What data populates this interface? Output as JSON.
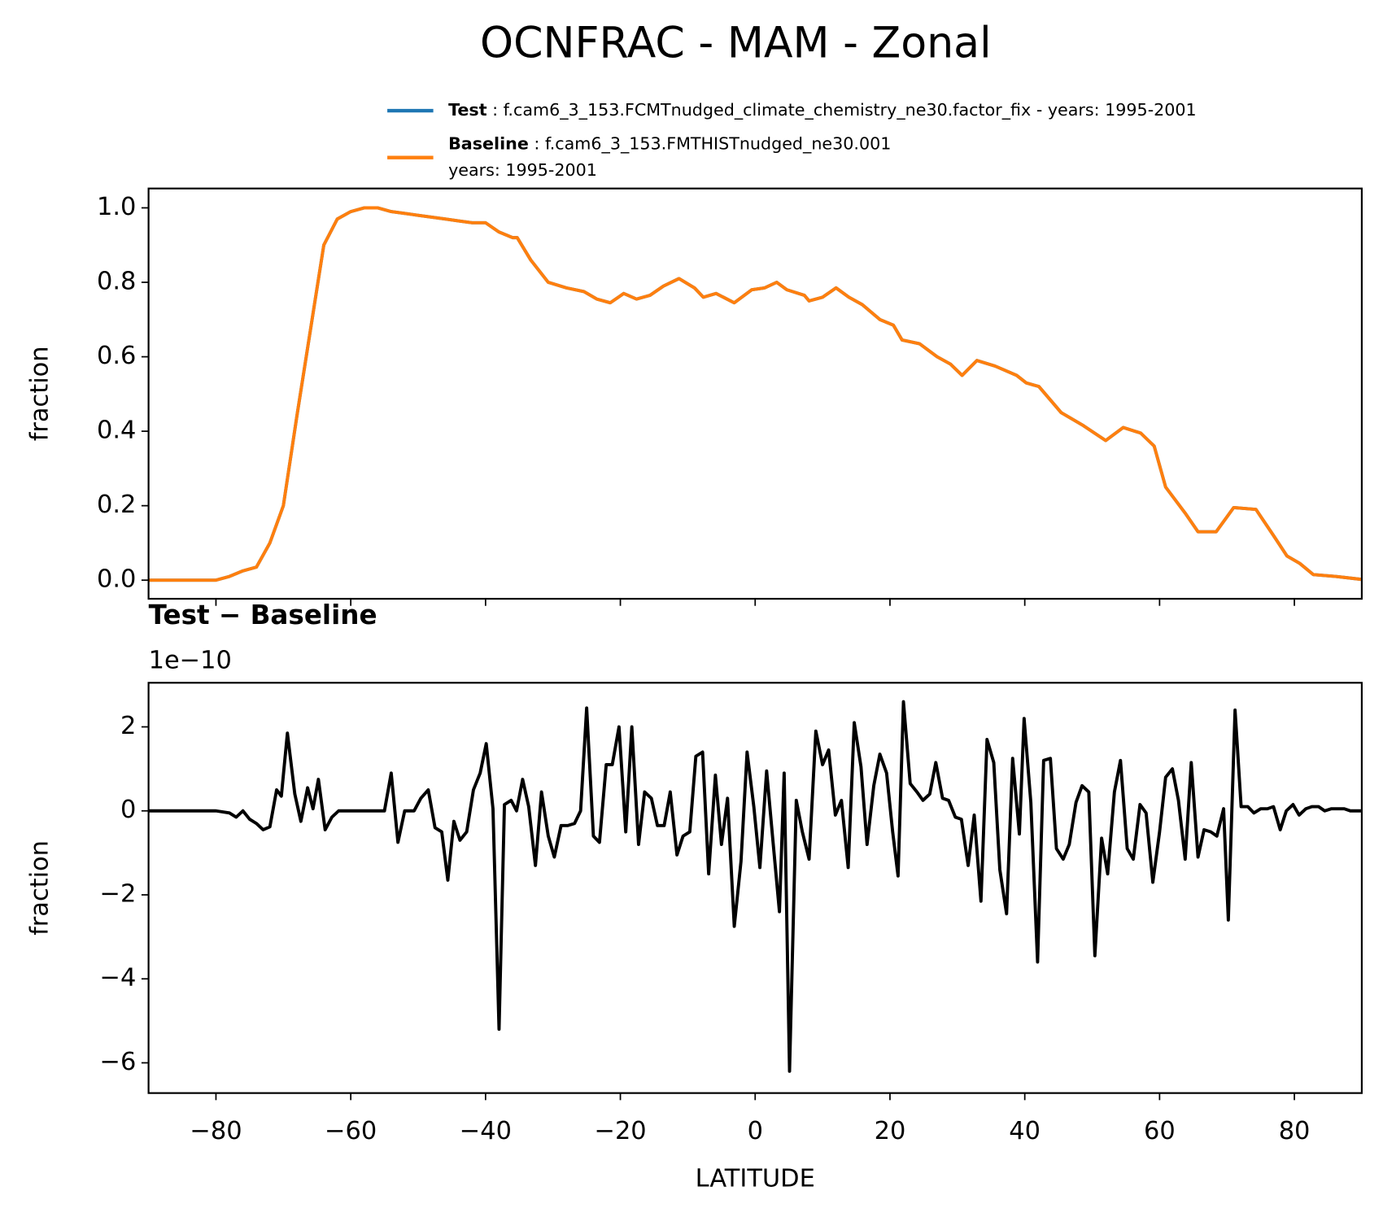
{
  "chart_data": [
    {
      "type": "line",
      "title": "OCNFRAC - MAM - Zonal",
      "ylabel": "fraction",
      "x": [
        -90,
        -80,
        -78,
        -76,
        -74,
        -72,
        -70,
        -68,
        -66,
        -64,
        -62,
        -60,
        -58,
        -56,
        -54,
        -52,
        -50,
        -48,
        -46,
        -44,
        -42,
        -40,
        -38,
        -36,
        -35.3,
        -33.3,
        -30.7,
        -28,
        -25.4,
        -23.5,
        -21.5,
        -19.5,
        -17.6,
        -15.6,
        -13.6,
        -11.3,
        -9,
        -7.7,
        -5.8,
        -3.1,
        -0.5,
        1.4,
        3.2,
        4.7,
        7.3,
        8,
        10,
        12,
        13.9,
        15.9,
        18.5,
        20.5,
        21.8,
        24.4,
        27,
        29,
        30.7,
        32.9,
        35.6,
        38.8,
        40.2,
        42.1,
        45.4,
        48.7,
        52,
        54.6,
        57.2,
        59.2,
        60.9,
        63.8,
        65.7,
        68.4,
        71,
        74.3,
        76.9,
        78.9,
        80.8,
        82.8,
        86.1,
        90
      ],
      "series": [
        {
          "name": "Test",
          "description": [
            "f.cam6_3_153.FCMTnudged_climate_chemistry_ne30.factor_fix - years: 1995-2001"
          ],
          "color": "#1f77b4",
          "values": [
            0,
            0,
            0.01,
            0.025,
            0.035,
            0.1,
            0.2,
            0.44,
            0.67,
            0.9,
            0.97,
            0.99,
            1.0,
            1.0,
            0.99,
            0.985,
            0.98,
            0.975,
            0.97,
            0.965,
            0.96,
            0.96,
            0.935,
            0.92,
            0.92,
            0.86,
            0.8,
            0.785,
            0.775,
            0.755,
            0.745,
            0.77,
            0.755,
            0.765,
            0.79,
            0.81,
            0.785,
            0.76,
            0.77,
            0.745,
            0.78,
            0.785,
            0.8,
            0.78,
            0.765,
            0.75,
            0.76,
            0.785,
            0.76,
            0.74,
            0.7,
            0.685,
            0.645,
            0.635,
            0.6,
            0.58,
            0.55,
            0.59,
            0.575,
            0.55,
            0.53,
            0.52,
            0.45,
            0.415,
            0.375,
            0.41,
            0.395,
            0.36,
            0.25,
            0.18,
            0.13,
            0.13,
            0.195,
            0.19,
            0.12,
            0.065,
            0.045,
            0.015,
            0.01,
            0.002
          ]
        },
        {
          "name": "Baseline",
          "description": [
            "f.cam6_3_153.FMTHISTnudged_ne30.001",
            "years: 1995-2001"
          ],
          "color": "#ff7f0e",
          "values": [
            0,
            0,
            0.01,
            0.025,
            0.035,
            0.1,
            0.2,
            0.44,
            0.67,
            0.9,
            0.97,
            0.99,
            1.0,
            1.0,
            0.99,
            0.985,
            0.98,
            0.975,
            0.97,
            0.965,
            0.96,
            0.96,
            0.935,
            0.92,
            0.92,
            0.86,
            0.8,
            0.785,
            0.775,
            0.755,
            0.745,
            0.77,
            0.755,
            0.765,
            0.79,
            0.81,
            0.785,
            0.76,
            0.77,
            0.745,
            0.78,
            0.785,
            0.8,
            0.78,
            0.765,
            0.75,
            0.76,
            0.785,
            0.76,
            0.74,
            0.7,
            0.685,
            0.645,
            0.635,
            0.6,
            0.58,
            0.55,
            0.59,
            0.575,
            0.55,
            0.53,
            0.52,
            0.45,
            0.415,
            0.375,
            0.41,
            0.395,
            0.36,
            0.25,
            0.18,
            0.13,
            0.13,
            0.195,
            0.19,
            0.12,
            0.065,
            0.045,
            0.015,
            0.01,
            0.002
          ]
        }
      ],
      "xlim": [
        -90,
        90
      ],
      "ylim": [
        -0.05,
        1.052
      ],
      "xticks": [
        -80,
        -60,
        -40,
        -20,
        0,
        20,
        40,
        60,
        80
      ],
      "yticks": [
        {
          "value": 0,
          "label": "0.0"
        },
        {
          "value": 0.2,
          "label": "0.2"
        },
        {
          "value": 0.4,
          "label": "0.4"
        },
        {
          "value": 0.6,
          "label": "0.6"
        },
        {
          "value": 0.8,
          "label": "0.8"
        },
        {
          "value": 1,
          "label": "1.0"
        }
      ]
    },
    {
      "type": "line",
      "title": "Test − Baseline",
      "y_offset_label": "1e−10",
      "ylabel": "fraction",
      "xlabel": "LATITUDE",
      "x": [
        -90,
        -80,
        -78,
        -77,
        -76,
        -75,
        -74,
        -73,
        -72,
        -71,
        -70.3,
        -69.4,
        -68.3,
        -67.4,
        -66.4,
        -65.6,
        -64.8,
        -63.8,
        -62.8,
        -61.8,
        -60,
        -55,
        -54,
        -53,
        -52,
        -50.6,
        -49.6,
        -48.5,
        -47.5,
        -46.5,
        -45.6,
        -44.7,
        -43.8,
        -42.8,
        -41.8,
        -40.8,
        -39.9,
        -38.9,
        -38,
        -37.2,
        -36.2,
        -35.4,
        -34.5,
        -33.6,
        -32.6,
        -31.7,
        -30.7,
        -29.8,
        -28.8,
        -27.8,
        -26.8,
        -25.9,
        -25,
        -24,
        -23.1,
        -22.1,
        -21.2,
        -20.2,
        -19.2,
        -18.3,
        -17.3,
        -16.4,
        -15.4,
        -14.5,
        -13.5,
        -12.6,
        -11.6,
        -10.7,
        -9.7,
        -8.8,
        -7.8,
        -6.9,
        -5.9,
        -5,
        -4.1,
        -3.1,
        -2.1,
        -1.2,
        -0.2,
        0.7,
        1.7,
        2.6,
        3.6,
        4.3,
        5.1,
        6.1,
        7,
        8,
        9,
        10,
        10.9,
        11.9,
        12.8,
        13.8,
        14.7,
        15.7,
        16.6,
        17.6,
        18.5,
        19.5,
        20.4,
        21.2,
        22,
        23,
        24,
        24.9,
        25.9,
        26.8,
        27.8,
        28.7,
        29.7,
        30.6,
        31.6,
        32.5,
        33.5,
        34.4,
        35.4,
        36.3,
        37.3,
        38.2,
        39.2,
        39.9,
        40.9,
        41.9,
        42.8,
        43.8,
        44.7,
        45.7,
        46.6,
        47.6,
        48.5,
        49.5,
        50.4,
        51.4,
        52.3,
        53.3,
        54.2,
        55.2,
        56.1,
        57.1,
        58,
        59,
        60,
        60.9,
        61.9,
        62.8,
        63.8,
        64.7,
        65.7,
        66.6,
        67.6,
        68.5,
        69.5,
        70.2,
        71.2,
        72.1,
        73.1,
        74,
        75,
        76,
        76.9,
        77.9,
        78.8,
        79.8,
        80.7,
        81.7,
        82.6,
        83.6,
        84.5,
        85.5,
        86.4,
        87.4,
        88.3,
        90
      ],
      "series": [
        {
          "color": "#000000",
          "values": [
            0,
            0,
            -0.05,
            -0.15,
            0,
            -0.2,
            -0.3,
            -0.45,
            -0.38,
            0.5,
            0.35,
            1.85,
            0.4,
            -0.25,
            0.55,
            0.05,
            0.75,
            -0.45,
            -0.15,
            0,
            0,
            0,
            0.9,
            -0.75,
            0,
            0,
            0.3,
            0.5,
            -0.4,
            -0.5,
            -1.65,
            -0.25,
            -0.7,
            -0.5,
            0.5,
            0.9,
            1.6,
            0.05,
            -5.2,
            0.15,
            0.25,
            0,
            0.75,
            0.1,
            -1.3,
            0.45,
            -0.6,
            -1.1,
            -0.35,
            -0.35,
            -0.3,
            0,
            2.45,
            -0.6,
            -0.75,
            1.1,
            1.1,
            2,
            -0.5,
            2,
            -0.8,
            0.45,
            0.3,
            -0.35,
            -0.35,
            0.45,
            -1.05,
            -0.6,
            -0.5,
            1.3,
            1.4,
            -1.5,
            0.85,
            -0.8,
            0.3,
            -2.75,
            -1.2,
            1.4,
            0.1,
            -1.35,
            0.95,
            -0.65,
            -2.4,
            0.9,
            -6.2,
            0.25,
            -0.5,
            -1.15,
            1.9,
            1.1,
            1.45,
            -0.1,
            0.25,
            -1.35,
            2.1,
            1.05,
            -0.8,
            0.6,
            1.35,
            0.9,
            -0.5,
            -1.55,
            2.6,
            0.65,
            0.45,
            0.25,
            0.4,
            1.15,
            0.3,
            0.25,
            -0.15,
            -0.2,
            -1.3,
            -0.1,
            -2.15,
            1.7,
            1.15,
            -1.4,
            -2.45,
            1.25,
            -0.55,
            2.2,
            0.2,
            -3.6,
            1.2,
            1.25,
            -0.9,
            -1.15,
            -0.8,
            0.2,
            0.6,
            0.45,
            -3.45,
            -0.65,
            -1.5,
            0.45,
            1.2,
            -0.9,
            -1.15,
            0.15,
            -0.05,
            -1.7,
            -0.5,
            0.8,
            1,
            0.25,
            -1.15,
            1.15,
            -1.1,
            -0.45,
            -0.5,
            -0.6,
            0.05,
            -2.6,
            2.4,
            0.1,
            0.1,
            -0.05,
            0.05,
            0.05,
            0.1,
            -0.45,
            0,
            0.15,
            -0.1,
            0.05,
            0.1,
            0.1,
            0,
            0.05,
            0.05,
            0.05,
            0,
            0
          ]
        }
      ],
      "xlim": [
        -90,
        90
      ],
      "ylim": [
        -6.72,
        3.05
      ],
      "xticks": [
        {
          "value": -80,
          "label": "−80"
        },
        {
          "value": -60,
          "label": "−60"
        },
        {
          "value": -40,
          "label": "−40"
        },
        {
          "value": -20,
          "label": "−20"
        },
        0,
        20,
        40,
        60,
        80
      ],
      "yticks": [
        2,
        0,
        {
          "value": -2,
          "label": "−2"
        },
        {
          "value": -4,
          "label": "−4"
        },
        {
          "value": -6,
          "label": "−6"
        }
      ]
    }
  ]
}
